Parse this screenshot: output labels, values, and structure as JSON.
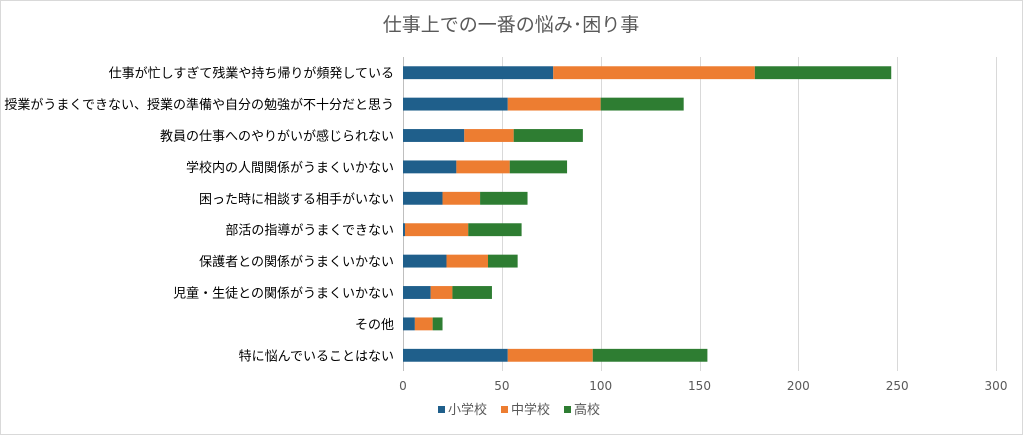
{
  "chart_data": {
    "type": "bar",
    "orientation": "horizontal",
    "stacked": true,
    "title": "仕事上での一番の悩み･困り事",
    "categories": [
      "仕事が忙しすぎて残業や持ち帰りが頻発している",
      "授業がうまくできない、授業の準備や自分の勉強が不十分だと思う",
      "教員の仕事へのやりがいが感じられない",
      "学校内の人間関係がうまくいかない",
      "困った時に相談する相手がいない",
      "部活の指導がうまくできない",
      "保護者との関係がうまくいかない",
      "児童・生徒との関係がうまくいかない",
      "その他",
      "特に悩んでいることはない"
    ],
    "series": [
      {
        "name": "小学校",
        "color": "#1f5f8b",
        "values": [
          76,
          53,
          31,
          27,
          20,
          1,
          22,
          14,
          6,
          53
        ]
      },
      {
        "name": "中学校",
        "color": "#ed7d31",
        "values": [
          102,
          47,
          25,
          27,
          19,
          32,
          21,
          11,
          9,
          43
        ]
      },
      {
        "name": "高校",
        "color": "#2e7d32",
        "values": [
          69,
          42,
          35,
          29,
          24,
          27,
          15,
          20,
          5,
          58
        ]
      }
    ],
    "xlim": [
      0,
      300
    ],
    "xticks": [
      0,
      50,
      100,
      150,
      200,
      250,
      300
    ],
    "xlabel": "",
    "ylabel": "",
    "grid": true,
    "legend_position": "bottom"
  }
}
